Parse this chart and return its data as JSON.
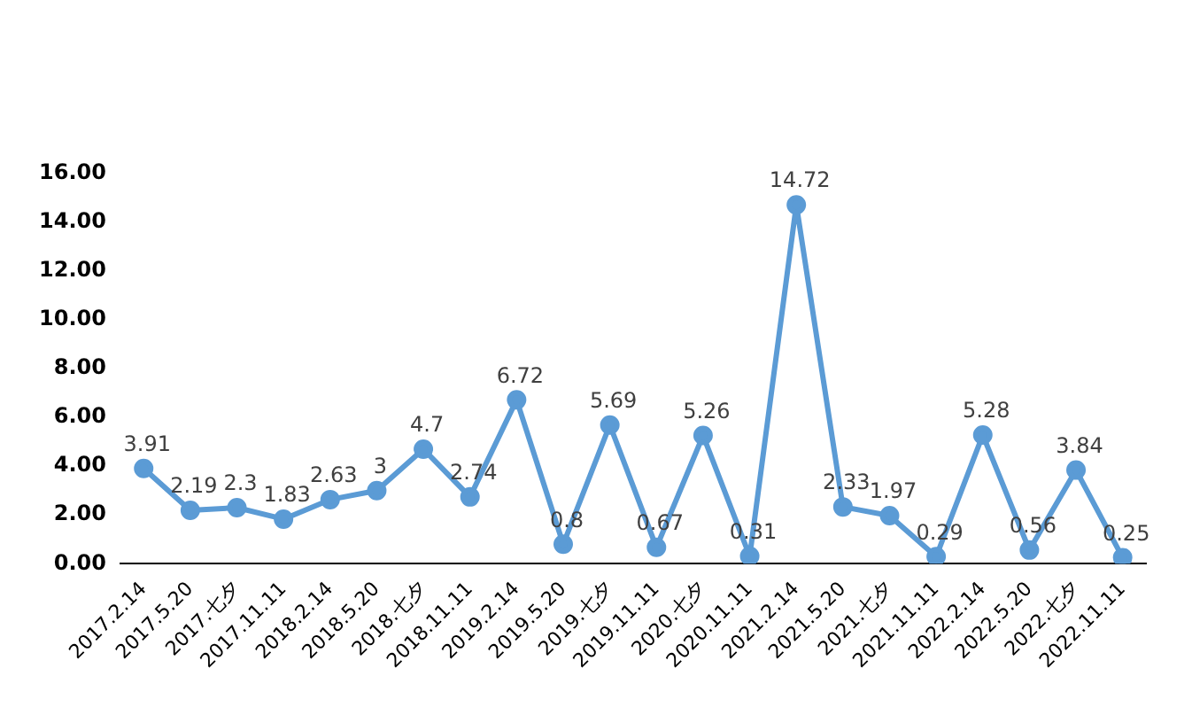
{
  "chart_data": {
    "type": "line",
    "categories": [
      "2017.2.14",
      "2017.5.20",
      "2017.七夕",
      "2017.11.11",
      "2018.2.14",
      "2018.5.20",
      "2018.七夕",
      "2018.11.11",
      "2019.2.14",
      "2019.5.20",
      "2019.七夕",
      "2019.11.11",
      "2020.七夕",
      "2020.11.11",
      "2021.2.14",
      "2021.5.20",
      "2021.七夕",
      "2021.11.11",
      "2022.2.14",
      "2022.5.20",
      "2022.七夕",
      "2022.11.11"
    ],
    "series": [
      {
        "color": "#5b9bd5",
        "values": [
          3.91,
          2.19,
          2.3,
          1.83,
          2.63,
          3,
          4.7,
          2.74,
          6.72,
          0.8,
          5.69,
          0.67,
          5.26,
          0.31,
          14.72,
          2.33,
          1.97,
          0.29,
          5.28,
          0.56,
          3.84,
          0.25
        ]
      }
    ],
    "ylim": [
      0,
      16
    ],
    "yticks": [
      {
        "value": 0,
        "label": "0.00"
      },
      {
        "value": 2,
        "label": "2.00"
      },
      {
        "value": 4,
        "label": "4.00"
      },
      {
        "value": 6,
        "label": "6.00"
      },
      {
        "value": 8,
        "label": "8.00"
      },
      {
        "value": 10,
        "label": "10.00"
      },
      {
        "value": 12,
        "label": "12.00"
      },
      {
        "value": 14,
        "label": "14.00"
      },
      {
        "value": 16,
        "label": "16.00"
      }
    ],
    "grid": false,
    "legend": false,
    "marker": "circle",
    "line_style": "solid",
    "data_labels": true
  }
}
